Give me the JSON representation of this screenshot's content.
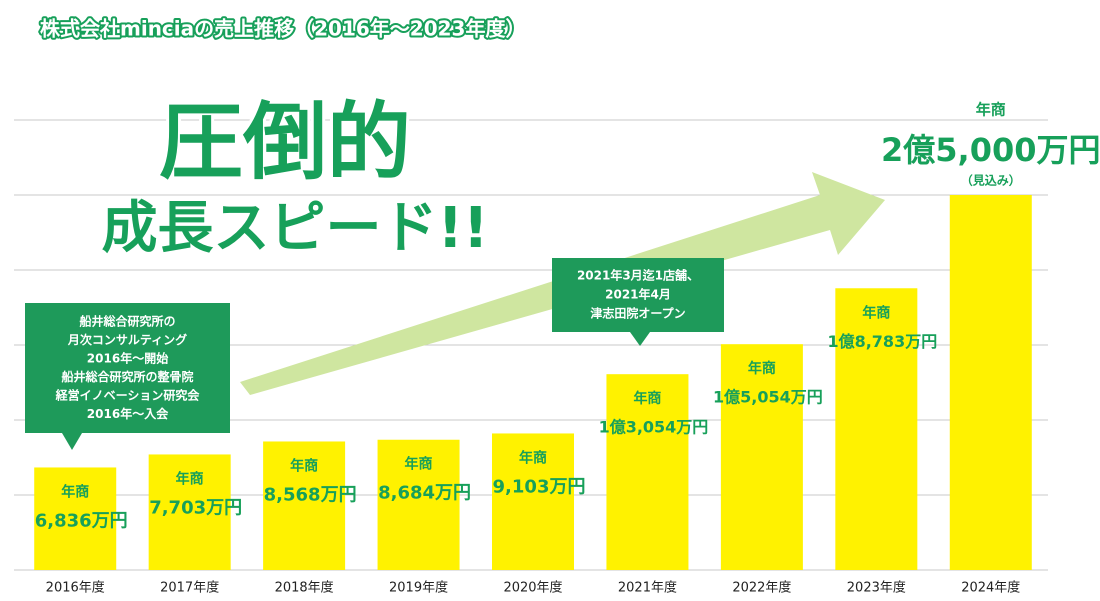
{
  "chart_data": {
    "type": "bar",
    "title": "株式会社minciaの売上推移（2016年〜2023年度）",
    "headline": "圧倒的",
    "subheadline": "成長スピード!!",
    "categories": [
      "2016年度",
      "2017年度",
      "2018年度",
      "2019年度",
      "2020年度",
      "2021年度",
      "2022年度",
      "2023年度",
      "2024年度"
    ],
    "values": [
      6836,
      7703,
      8568,
      8684,
      9103,
      13054,
      15054,
      18783,
      25000
    ],
    "value_labels": [
      "6,836万円",
      "7,703万円",
      "8,568万円",
      "8,684万円",
      "9,103万円",
      "1億3,054万円",
      "1億5,054万円",
      "1億8,783万円",
      "2億5,000万円"
    ],
    "value_heading": "年商",
    "forecast_note": "（見込み）",
    "color": "#fff200",
    "label_color": "#17a05a",
    "ylim": [
      0,
      30000
    ],
    "yticks": [
      0,
      5000,
      10000,
      15000,
      20000,
      25000,
      30000
    ],
    "grid": true,
    "annotations": [
      {
        "lines": [
          "船井総合研究所の",
          "月次コンサルティング",
          "2016年〜開始",
          "船井総合研究所の整骨院",
          "経営イノベーション研究会",
          "2016年〜入会"
        ]
      },
      {
        "lines": [
          "2021年3月迄1店舗、",
          "2021年4月",
          "津志田院オープン"
        ]
      }
    ]
  }
}
